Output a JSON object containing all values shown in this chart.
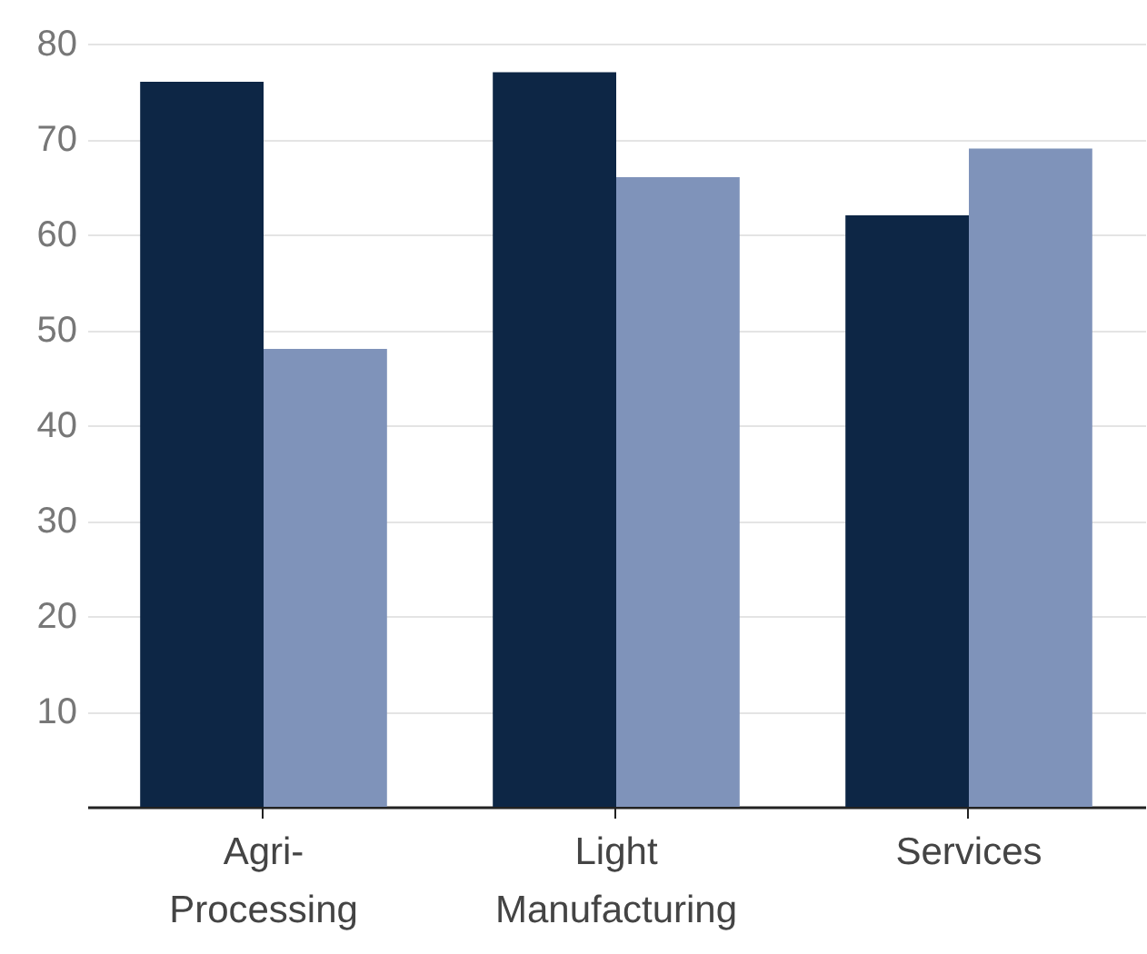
{
  "chart_data": {
    "type": "bar",
    "categories": [
      "Agri-Processing",
      "Light Manufacturing",
      "Services"
    ],
    "series": [
      {
        "color": "#0d2645",
        "values": [
          76,
          77,
          62
        ]
      },
      {
        "color": "#7f93ba",
        "values": [
          48,
          66,
          69
        ]
      }
    ],
    "ylim": [
      0,
      80
    ],
    "yticks": [
      10,
      20,
      30,
      40,
      50,
      60,
      70,
      80
    ],
    "grid": "y",
    "legend": false
  }
}
